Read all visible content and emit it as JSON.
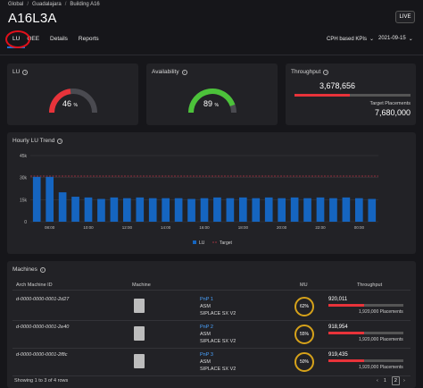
{
  "breadcrumb": [
    "Global",
    "Guadalajara",
    "Building A16"
  ],
  "page_title": "A16L3A",
  "live_label": "LIVE",
  "tabs": [
    {
      "label": "LU",
      "active": true
    },
    {
      "label": "OEE",
      "active": false
    },
    {
      "label": "Details",
      "active": false
    },
    {
      "label": "Reports",
      "active": false
    }
  ],
  "kpi_select": "CPH based KPIs",
  "date": "2021-09-15",
  "lu_card": {
    "title": "LU",
    "value": "46",
    "unit": "%",
    "fraction": 0.46,
    "color": "#e8333a"
  },
  "availability_card": {
    "title": "Availability",
    "value": "89",
    "unit": "%",
    "fraction": 0.89,
    "color": "#4cc23a"
  },
  "throughput_card": {
    "title": "Throughput",
    "value": "3,678,656",
    "target_label": "Target Placements",
    "target_value": "7,680,000",
    "fraction": 0.48
  },
  "trend": {
    "title": "Hourly LU Trend",
    "legend_lu": "LU",
    "legend_target": "Target"
  },
  "chart_data": {
    "type": "bar",
    "title": "Hourly LU Trend",
    "y_ticks": [
      "45k",
      "30k",
      "15k",
      "0"
    ],
    "ylim": [
      0,
      45000
    ],
    "target": 31000,
    "x_labels": [
      "08:00",
      "10:00",
      "12:00",
      "14:00",
      "16:00",
      "18:00",
      "20:00",
      "22:00",
      "00:00"
    ],
    "values": [
      30500,
      30500,
      20000,
      17000,
      16500,
      15500,
      16500,
      16000,
      16500,
      16000,
      16000,
      16000,
      15500,
      16000,
      16500,
      16000,
      16500,
      16000,
      16500,
      16000,
      16500,
      16000,
      16500,
      16000,
      16500,
      16000,
      15500
    ],
    "series_colors": {
      "lu": "#1565c0",
      "target": "#c23a4a"
    }
  },
  "machines": {
    "title": "Machines",
    "headers": {
      "id": "Arch Machine ID",
      "machine": "Machine",
      "mu": "MU",
      "throughput": "Throughput"
    },
    "rows": [
      {
        "id": "d-0000-0000-0001-2d27",
        "pnp": "PnP 1",
        "brand": "ASM",
        "model": "SIPLACE SX V2",
        "mu": "62%",
        "tp": "920,011",
        "placements": "1,920,000 Placements",
        "fraction": 0.48
      },
      {
        "id": "d-0000-0000-0001-2e40",
        "pnp": "PnP 2",
        "brand": "ASM",
        "model": "SIPLACE SX V2",
        "mu": "55%",
        "tp": "918,954",
        "placements": "1,920,000 Placements",
        "fraction": 0.48
      },
      {
        "id": "d-0000-0000-0001-2f8c",
        "pnp": "PnP 3",
        "brand": "ASM",
        "model": "SIPLACE SX V2",
        "mu": "50%",
        "tp": "919,435",
        "placements": "1,920,000 Placements",
        "fraction": 0.48
      }
    ],
    "pager_text": "Showing 1 to 3 of 4 rows",
    "pages": [
      "1",
      "2"
    ]
  }
}
